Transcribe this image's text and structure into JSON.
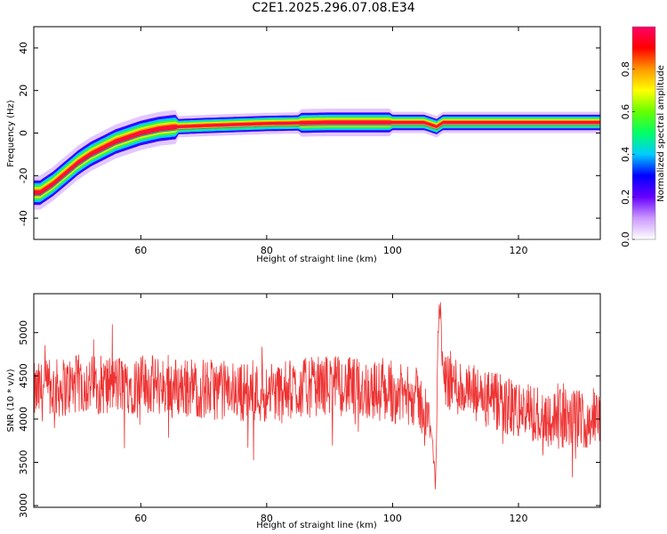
{
  "title": "C2E1.2025.296.07.08.E34",
  "chart_data": [
    {
      "type": "heatmap",
      "xlabel": "Height of straight line (km)",
      "ylabel": "Frequency (Hz)",
      "xlim": [
        43,
        133
      ],
      "ylim": [
        -50,
        50
      ],
      "xticks": [
        60,
        80,
        100,
        120
      ],
      "yticks": [
        -40,
        -20,
        0,
        20,
        40
      ],
      "colorbar": {
        "label": "Normalized spectral amplitude",
        "range": [
          0,
          1
        ],
        "ticks": [
          "0.0",
          "0.2",
          "0.4",
          "0.6",
          "0.8"
        ]
      },
      "ridge": [
        {
          "x": 44,
          "y": -28
        },
        {
          "x": 46,
          "y": -24
        },
        {
          "x": 48,
          "y": -19
        },
        {
          "x": 50,
          "y": -14
        },
        {
          "x": 52,
          "y": -10
        },
        {
          "x": 54,
          "y": -7
        },
        {
          "x": 56,
          "y": -4
        },
        {
          "x": 58,
          "y": -2
        },
        {
          "x": 60,
          "y": 0
        },
        {
          "x": 63,
          "y": 2
        },
        {
          "x": 66,
          "y": 3
        },
        {
          "x": 70,
          "y": 3.5
        },
        {
          "x": 75,
          "y": 4
        },
        {
          "x": 80,
          "y": 4.5
        },
        {
          "x": 90,
          "y": 5
        },
        {
          "x": 100,
          "y": 5
        },
        {
          "x": 105,
          "y": 5
        },
        {
          "x": 106,
          "y": 4
        },
        {
          "x": 107,
          "y": 3
        },
        {
          "x": 108,
          "y": 5
        },
        {
          "x": 115,
          "y": 5
        },
        {
          "x": 125,
          "y": 5
        },
        {
          "x": 133,
          "y": 5
        }
      ]
    },
    {
      "type": "line",
      "xlabel": "Height of straight line (km)",
      "ylabel": "SNR (10 * v/v)",
      "xlim": [
        43,
        133
      ],
      "ylim": [
        2980,
        5450
      ],
      "xticks": [
        60,
        80,
        100,
        120
      ],
      "yticks": [
        3000,
        3500,
        4000,
        4500,
        5000
      ],
      "color": "#ee3333",
      "series_profile": [
        {
          "x": 43,
          "y": 4300
        },
        {
          "x": 50,
          "y": 4400
        },
        {
          "x": 60,
          "y": 4400
        },
        {
          "x": 70,
          "y": 4350
        },
        {
          "x": 80,
          "y": 4300
        },
        {
          "x": 90,
          "y": 4400
        },
        {
          "x": 100,
          "y": 4300
        },
        {
          "x": 104,
          "y": 4250
        },
        {
          "x": 106.3,
          "y": 3900
        },
        {
          "x": 106.8,
          "y": 3100
        },
        {
          "x": 107.2,
          "y": 4900
        },
        {
          "x": 107.5,
          "y": 5400
        },
        {
          "x": 108,
          "y": 4500
        },
        {
          "x": 112,
          "y": 4300
        },
        {
          "x": 116,
          "y": 4200
        },
        {
          "x": 120,
          "y": 4100
        },
        {
          "x": 126,
          "y": 4000
        },
        {
          "x": 133,
          "y": 4000
        }
      ],
      "noise_spread": 350
    }
  ]
}
